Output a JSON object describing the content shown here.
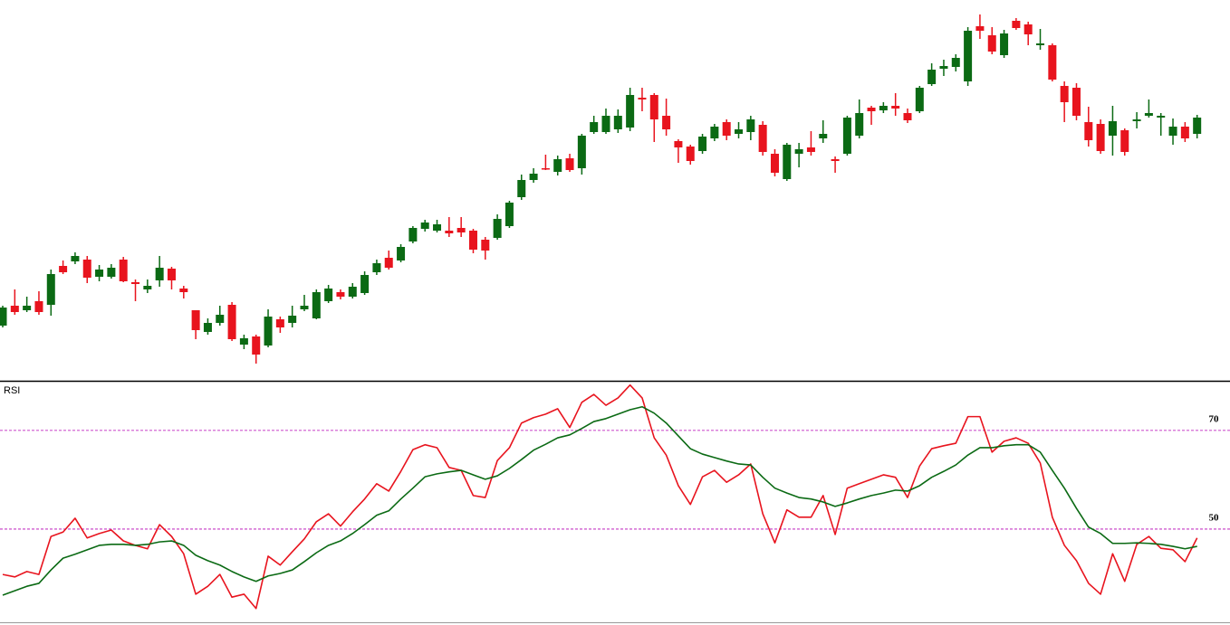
{
  "chart_data": [
    {
      "type": "candlestick",
      "up_color": "#0b6a14",
      "down_color": "#e8141e",
      "ylim": [
        0,
        420
      ],
      "open": [
        60,
        82,
        77,
        87,
        83,
        126,
        131,
        133,
        114,
        114,
        133,
        108,
        100,
        110,
        123,
        101,
        77,
        53,
        63,
        83,
        39,
        48,
        38,
        67,
        63,
        78,
        68,
        87,
        97,
        92,
        96,
        119,
        135,
        132,
        153,
        167,
        165,
        165,
        168,
        165,
        155,
        157,
        170,
        202,
        221,
        234,
        230,
        245,
        234,
        274,
        274,
        277,
        279,
        312,
        315,
        292,
        264,
        258,
        253,
        267,
        285,
        272,
        274,
        282,
        250,
        222,
        250,
        257,
        267,
        244,
        250,
        270,
        301,
        298,
        303,
        295,
        297,
        327,
        344,
        346,
        330,
        391,
        381,
        359,
        397,
        393,
        370,
        370,
        325,
        323,
        285,
        283,
        270,
        276,
        286,
        292,
        290,
        270,
        280,
        272
      ],
      "high": [
        82,
        100,
        92,
        98,
        122,
        132,
        141,
        137,
        127,
        128,
        136,
        111,
        111,
        137,
        125,
        104,
        77,
        68,
        82,
        86,
        50,
        50,
        78,
        70,
        82,
        94,
        100,
        105,
        100,
        107,
        120,
        133,
        143,
        150,
        170,
        177,
        177,
        180,
        180,
        167,
        158,
        183,
        198,
        227,
        234,
        249,
        248,
        250,
        272,
        292,
        300,
        299,
        323,
        323,
        317,
        311,
        266,
        260,
        272,
        283,
        288,
        285,
        292,
        286,
        255,
        262,
        262,
        275,
        287,
        247,
        292,
        310,
        303,
        307,
        317,
        300,
        325,
        350,
        354,
        360,
        390,
        404,
        390,
        387,
        400,
        396,
        388,
        372,
        330,
        328,
        302,
        288,
        303,
        278,
        296,
        310,
        295,
        289,
        285,
        293
      ],
      "low": [
        58,
        72,
        75,
        72,
        71,
        117,
        128,
        107,
        109,
        112,
        108,
        87,
        96,
        103,
        100,
        90,
        45,
        50,
        60,
        43,
        34,
        18,
        36,
        52,
        58,
        76,
        67,
        85,
        89,
        90,
        94,
        116,
        122,
        130,
        151,
        164,
        163,
        158,
        158,
        140,
        133,
        155,
        168,
        199,
        218,
        232,
        226,
        230,
        227,
        272,
        272,
        273,
        275,
        297,
        263,
        270,
        240,
        238,
        250,
        264,
        265,
        267,
        265,
        248,
        225,
        220,
        235,
        248,
        262,
        229,
        248,
        267,
        282,
        295,
        292,
        284,
        295,
        325,
        336,
        341,
        325,
        377,
        360,
        356,
        387,
        370,
        365,
        330,
        285,
        287,
        258,
        250,
        248,
        248,
        278,
        290,
        270,
        260,
        263,
        267
      ],
      "close": [
        80,
        75,
        82,
        75,
        117,
        119,
        137,
        113,
        122,
        124,
        109,
        106,
        104,
        124,
        110,
        97,
        55,
        63,
        72,
        45,
        46,
        28,
        70,
        58,
        71,
        82,
        97,
        101,
        92,
        103,
        116,
        129,
        124,
        147,
        168,
        174,
        172,
        162,
        163,
        144,
        143,
        178,
        196,
        221,
        228,
        233,
        244,
        232,
        270,
        285,
        292,
        292,
        315,
        310,
        288,
        277,
        257,
        242,
        269,
        280,
        270,
        277,
        288,
        252,
        229,
        260,
        255,
        252,
        272,
        242,
        290,
        295,
        297,
        303,
        300,
        287,
        323,
        343,
        347,
        356,
        386,
        386,
        363,
        383,
        389,
        382,
        372,
        332,
        307,
        292,
        265,
        253,
        286,
        252,
        288,
        295,
        292,
        280,
        267,
        290
      ]
    },
    {
      "type": "line",
      "title": "RSI",
      "ylim": [
        31.1,
        79.7
      ],
      "yticks": [
        50,
        70
      ],
      "level_color": "#b400b4",
      "series": [
        {
          "color": "#e8141e",
          "values": [
            40.8,
            40.3,
            41.4,
            40.8,
            48.5,
            49.4,
            52.2,
            48.2,
            49.1,
            49.8,
            47.6,
            46.7,
            46.0,
            50.9,
            48.5,
            45.0,
            36.8,
            38.4,
            40.8,
            36.2,
            36.8,
            33.9,
            44.5,
            42.7,
            45.4,
            48.0,
            51.5,
            53.1,
            50.6,
            53.5,
            56.1,
            59.2,
            57.7,
            61.7,
            66.1,
            67.1,
            66.5,
            62.5,
            61.9,
            56.8,
            56.4,
            63.9,
            66.5,
            71.5,
            72.6,
            73.3,
            74.4,
            70.6,
            75.7,
            77.3,
            75.1,
            76.6,
            79.2,
            76.6,
            68.5,
            65.0,
            58.8,
            55.0,
            60.6,
            61.9,
            59.5,
            61.0,
            63.2,
            53.1,
            47.2,
            53.9,
            52.4,
            52.4,
            56.8,
            48.9,
            58.3,
            59.2,
            60.1,
            61.0,
            60.5,
            56.4,
            62.8,
            66.3,
            66.9,
            67.4,
            72.8,
            72.8,
            65.6,
            67.8,
            68.5,
            67.4,
            63.4,
            52.4,
            46.7,
            43.6,
            39.0,
            36.8,
            45.0,
            39.4,
            46.9,
            48.5,
            46.1,
            45.8,
            43.4,
            48.2
          ]
        },
        {
          "color": "#0b6a14",
          "values": [
            36.6,
            37.5,
            38.4,
            39.0,
            41.7,
            44.1,
            44.9,
            45.8,
            46.7,
            46.9,
            46.9,
            46.7,
            46.9,
            47.4,
            47.6,
            46.7,
            44.7,
            43.6,
            42.7,
            41.4,
            40.3,
            39.4,
            40.5,
            41.0,
            41.7,
            43.4,
            45.2,
            46.7,
            47.6,
            49.1,
            50.9,
            52.8,
            53.7,
            56.1,
            58.3,
            60.6,
            61.2,
            61.6,
            61.9,
            61.0,
            60.1,
            60.8,
            62.3,
            64.1,
            66.0,
            67.2,
            68.5,
            69.1,
            70.4,
            71.8,
            72.4,
            73.3,
            74.2,
            74.8,
            73.5,
            71.5,
            68.9,
            66.3,
            65.2,
            64.5,
            63.8,
            63.2,
            63.0,
            60.5,
            58.3,
            57.3,
            56.4,
            56.1,
            55.5,
            54.6,
            55.3,
            56.1,
            56.8,
            57.3,
            57.9,
            57.7,
            58.8,
            60.5,
            61.7,
            63.0,
            65.0,
            66.5,
            66.5,
            66.9,
            67.1,
            67.1,
            65.6,
            61.9,
            58.3,
            54.2,
            50.4,
            49.1,
            47.1,
            47.1,
            47.2,
            47.1,
            46.9,
            46.5,
            46.0,
            46.5
          ]
        }
      ]
    }
  ]
}
